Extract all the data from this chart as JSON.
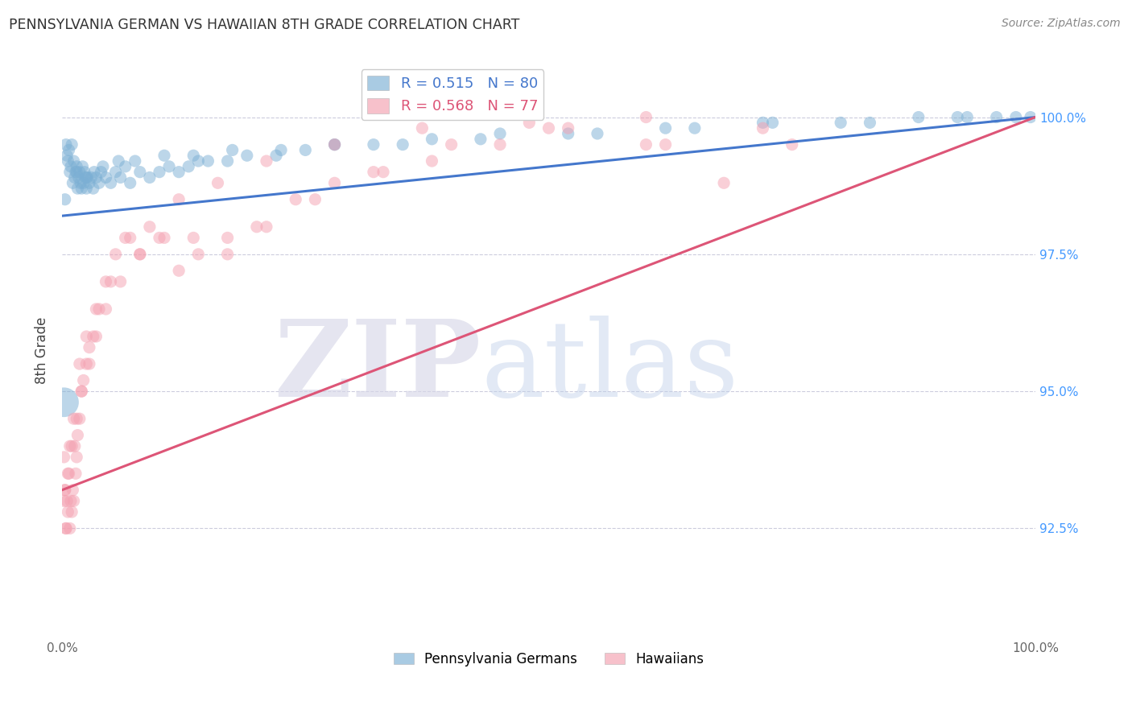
{
  "title": "PENNSYLVANIA GERMAN VS HAWAIIAN 8TH GRADE CORRELATION CHART",
  "source": "Source: ZipAtlas.com",
  "ylabel": "8th Grade",
  "xlim": [
    0.0,
    100.0
  ],
  "ylim": [
    90.5,
    101.0
  ],
  "y_tick_values": [
    92.5,
    95.0,
    97.5,
    100.0
  ],
  "y_tick_labels": [
    "92.5%",
    "95.0%",
    "97.5%",
    "100.0%"
  ],
  "legend_blue_r": "0.515",
  "legend_blue_n": "80",
  "legend_pink_r": "0.568",
  "legend_pink_n": "77",
  "legend_label_blue": "Pennsylvania Germans",
  "legend_label_pink": "Hawaiians",
  "bg_color": "#ffffff",
  "blue_color": "#7bafd4",
  "pink_color": "#f4a0b0",
  "blue_line_color": "#4477cc",
  "pink_line_color": "#dd5577",
  "title_color": "#333333",
  "source_color": "#888888",
  "right_tick_color": "#4499ff",
  "grid_color": "#ccccdd",
  "blue_line_y0": 98.2,
  "blue_line_y1": 100.0,
  "pink_line_y0": 93.2,
  "pink_line_y1": 100.0,
  "blue_x": [
    0.4,
    0.5,
    0.6,
    0.7,
    0.8,
    0.9,
    1.0,
    1.1,
    1.2,
    1.3,
    1.4,
    1.5,
    1.6,
    1.7,
    1.8,
    1.9,
    2.0,
    2.1,
    2.2,
    2.3,
    2.4,
    2.5,
    2.6,
    2.8,
    3.0,
    3.2,
    3.5,
    3.8,
    4.0,
    4.5,
    5.0,
    5.5,
    6.0,
    6.5,
    7.0,
    8.0,
    9.0,
    10.0,
    11.0,
    12.0,
    13.0,
    14.0,
    15.0,
    17.0,
    19.0,
    22.0,
    25.0,
    28.0,
    32.0,
    38.0,
    45.0,
    55.0,
    65.0,
    72.0,
    80.0,
    88.0,
    92.0,
    96.0,
    98.0,
    99.5,
    0.3,
    1.5,
    2.5,
    3.3,
    4.2,
    5.8,
    7.5,
    10.5,
    13.5,
    17.5,
    22.5,
    28.0,
    35.0,
    43.0,
    52.0,
    62.0,
    73.0,
    83.0,
    93.0,
    0.2
  ],
  "blue_y": [
    99.5,
    99.3,
    99.2,
    99.4,
    99.0,
    99.1,
    99.5,
    98.8,
    99.2,
    98.9,
    99.0,
    99.1,
    98.7,
    98.9,
    99.0,
    98.8,
    98.7,
    99.1,
    98.8,
    99.0,
    98.9,
    98.7,
    98.9,
    98.8,
    98.9,
    98.7,
    98.9,
    98.8,
    99.0,
    98.9,
    98.8,
    99.0,
    98.9,
    99.1,
    98.8,
    99.0,
    98.9,
    99.0,
    99.1,
    99.0,
    99.1,
    99.2,
    99.2,
    99.2,
    99.3,
    99.3,
    99.4,
    99.5,
    99.5,
    99.6,
    99.7,
    99.7,
    99.8,
    99.9,
    99.9,
    100.0,
    100.0,
    100.0,
    100.0,
    100.0,
    98.5,
    99.0,
    98.9,
    99.0,
    99.1,
    99.2,
    99.2,
    99.3,
    99.3,
    99.4,
    99.4,
    99.5,
    99.5,
    99.6,
    99.7,
    99.8,
    99.9,
    99.9,
    100.0,
    94.8
  ],
  "blue_sizes": [
    120,
    120,
    120,
    120,
    120,
    120,
    120,
    120,
    120,
    120,
    120,
    120,
    120,
    120,
    120,
    120,
    120,
    120,
    120,
    120,
    120,
    120,
    120,
    120,
    120,
    120,
    120,
    120,
    120,
    120,
    120,
    120,
    120,
    120,
    120,
    120,
    120,
    120,
    120,
    120,
    120,
    120,
    120,
    120,
    120,
    120,
    120,
    120,
    120,
    120,
    120,
    120,
    120,
    120,
    120,
    120,
    120,
    120,
    120,
    120,
    120,
    120,
    120,
    120,
    120,
    120,
    120,
    120,
    120,
    120,
    120,
    120,
    120,
    120,
    120,
    120,
    120,
    120,
    120,
    700
  ],
  "pink_x": [
    0.2,
    0.3,
    0.4,
    0.5,
    0.6,
    0.7,
    0.8,
    0.9,
    1.0,
    1.1,
    1.2,
    1.3,
    1.4,
    1.5,
    1.6,
    1.8,
    2.0,
    2.2,
    2.5,
    2.8,
    3.2,
    3.8,
    4.5,
    5.5,
    6.5,
    8.0,
    10.0,
    12.0,
    14.0,
    17.0,
    20.0,
    24.0,
    28.0,
    33.0,
    38.0,
    45.0,
    52.0,
    60.0,
    68.0,
    75.0,
    0.3,
    0.6,
    1.0,
    1.5,
    2.0,
    2.8,
    3.5,
    4.5,
    6.0,
    8.0,
    10.5,
    13.5,
    17.0,
    21.0,
    26.0,
    32.0,
    40.0,
    50.0,
    62.0,
    0.2,
    0.4,
    0.8,
    1.2,
    1.8,
    2.5,
    3.5,
    5.0,
    7.0,
    9.0,
    12.0,
    16.0,
    21.0,
    28.0,
    37.0,
    48.0,
    60.0,
    72.0
  ],
  "pink_y": [
    93.8,
    93.2,
    92.5,
    93.0,
    92.8,
    93.5,
    92.5,
    93.0,
    92.8,
    93.2,
    93.0,
    94.0,
    93.5,
    93.8,
    94.2,
    94.5,
    95.0,
    95.2,
    95.5,
    95.8,
    96.0,
    96.5,
    97.0,
    97.5,
    97.8,
    97.5,
    97.8,
    97.2,
    97.5,
    97.8,
    98.0,
    98.5,
    98.8,
    99.0,
    99.2,
    99.5,
    99.8,
    100.0,
    98.8,
    99.5,
    93.2,
    93.5,
    94.0,
    94.5,
    95.0,
    95.5,
    96.0,
    96.5,
    97.0,
    97.5,
    97.8,
    97.8,
    97.5,
    98.0,
    98.5,
    99.0,
    99.5,
    99.8,
    99.5,
    93.0,
    92.5,
    94.0,
    94.5,
    95.5,
    96.0,
    96.5,
    97.0,
    97.8,
    98.0,
    98.5,
    98.8,
    99.2,
    99.5,
    99.8,
    99.9,
    99.5,
    99.8
  ],
  "pink_sizes": [
    120,
    120,
    120,
    120,
    120,
    120,
    120,
    120,
    120,
    120,
    120,
    120,
    120,
    120,
    120,
    120,
    120,
    120,
    120,
    120,
    120,
    120,
    120,
    120,
    120,
    120,
    120,
    120,
    120,
    120,
    120,
    120,
    120,
    120,
    120,
    120,
    120,
    120,
    120,
    120,
    120,
    120,
    120,
    120,
    120,
    120,
    120,
    120,
    120,
    120,
    120,
    120,
    120,
    120,
    120,
    120,
    120,
    120,
    120,
    120,
    120,
    120,
    120,
    120,
    120,
    120,
    120,
    120,
    120,
    120,
    120,
    120,
    120,
    120,
    120,
    120,
    120
  ]
}
